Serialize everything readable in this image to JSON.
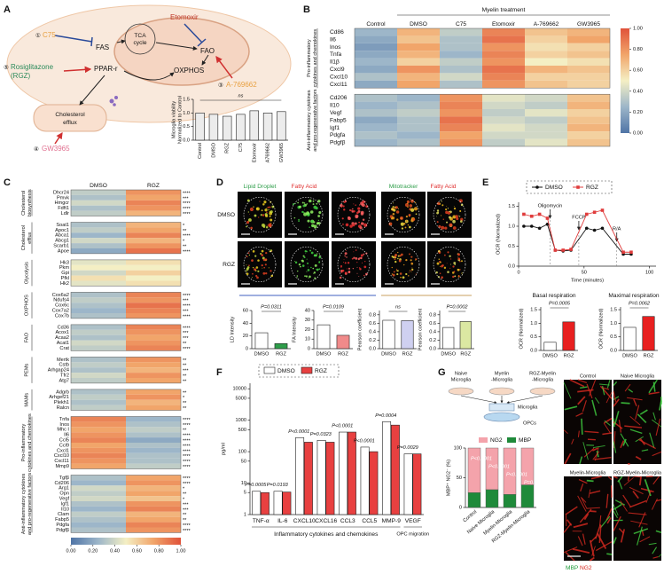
{
  "panels": [
    "A",
    "B",
    "C",
    "D",
    "E",
    "F",
    "G"
  ],
  "a": {
    "labels": {
      "n1": "①",
      "c75": "C75",
      "fas": "FAS",
      "tca1": "TCA",
      "tca2": "cycle",
      "etomoxir": "Etomoxir",
      "fao": "FAO",
      "oxphos": "OXPHOS",
      "n3": "③",
      "a769662": "A-769662",
      "n5": "⑤",
      "rgz1": "Rosiglitazone",
      "rgz2": "(RGZ)",
      "ppar": "PPAR-r",
      "efflux1": "Cholesterol",
      "efflux2": "efflux",
      "n4": "④",
      "gw": "GW3965"
    },
    "chart": {
      "type": "bar",
      "ylabel": [
        "Microglia viability",
        "Normalized to Control"
      ],
      "annotation": "ns",
      "categories": [
        "Control",
        "DMSO",
        "RGZ",
        "C75",
        "Etomoxir",
        "A769662",
        "GW3965"
      ],
      "values": [
        1.0,
        0.95,
        0.88,
        0.95,
        1.08,
        1.0,
        1.05
      ],
      "color": "#ececec",
      "ylim": [
        0,
        1.5
      ],
      "yticks": [
        {
          "value": 0,
          "label": "0.0"
        },
        0.5,
        {
          "value": 1,
          "label": "1.0"
        },
        1.5
      ]
    }
  },
  "b": {
    "type": "heatmap",
    "super_header": "Myelin treatment",
    "columns": [
      "Control",
      "DMSO",
      "C75",
      "Etomoxir",
      "A-769662",
      "GW3965"
    ],
    "blocks": [
      {
        "name": [
          "Pro-inflammatory",
          "cytokines and chemokines"
        ],
        "genes": [
          "Cd86",
          "Il6",
          "Inos",
          "Tnfa",
          "Il1β",
          "Cxcl9",
          "Cxcl10",
          "Cxcl11"
        ],
        "values": [
          [
            0.25,
            0.7,
            0.35,
            0.85,
            0.65,
            0.7
          ],
          [
            0.2,
            0.65,
            0.3,
            0.9,
            0.6,
            0.75
          ],
          [
            0.15,
            0.75,
            0.3,
            0.8,
            0.55,
            0.6
          ],
          [
            0.2,
            0.7,
            0.25,
            0.85,
            0.6,
            0.65
          ],
          [
            0.25,
            0.6,
            0.35,
            0.8,
            0.5,
            0.55
          ],
          [
            0.2,
            0.8,
            0.3,
            0.9,
            0.7,
            0.65
          ],
          [
            0.3,
            0.7,
            0.4,
            0.85,
            0.6,
            0.6
          ],
          [
            0.2,
            0.75,
            0.3,
            0.8,
            0.65,
            0.6
          ]
        ]
      },
      {
        "name": [
          "Anti-inflammatory cytokines",
          "and pro-regenerative factors"
        ],
        "genes": [
          "Cd206",
          "Il10",
          "Vegf",
          "Fabp5",
          "Igf1",
          "Pdgfa",
          "Pdgfβ"
        ],
        "values": [
          [
            0.3,
            0.25,
            0.8,
            0.45,
            0.4,
            0.65
          ],
          [
            0.25,
            0.3,
            0.85,
            0.4,
            0.35,
            0.7
          ],
          [
            0.3,
            0.35,
            0.8,
            0.35,
            0.45,
            0.6
          ],
          [
            0.2,
            0.3,
            0.9,
            0.4,
            0.35,
            0.65
          ],
          [
            0.25,
            0.3,
            0.85,
            0.45,
            0.4,
            0.7
          ],
          [
            0.3,
            0.25,
            0.75,
            0.4,
            0.4,
            0.6
          ],
          [
            0.25,
            0.3,
            0.8,
            0.35,
            0.45,
            0.65
          ]
        ]
      }
    ],
    "colorbar_ticks": [
      {
        "value": 0,
        "label": "0.00"
      },
      {
        "value": 0.2,
        "label": "0.20"
      },
      {
        "value": 0.4,
        "label": "0.40"
      },
      {
        "value": 0.6,
        "label": "0.60"
      },
      {
        "value": 0.8,
        "label": "0.80"
      },
      {
        "value": 1,
        "label": "1.00"
      }
    ]
  },
  "c": {
    "type": "heatmap",
    "columns": [
      "DMSO",
      "RGZ"
    ],
    "blocks": [
      {
        "name": [
          "Cholesterol",
          "biosynthesis"
        ],
        "genes": [
          "Dhcr24",
          "Pmvk",
          "Hmgcr",
          "Fdft1",
          "Ldlr"
        ],
        "values": [
          [
            0.35,
            0.8
          ],
          [
            0.3,
            0.75
          ],
          [
            0.4,
            0.85
          ],
          [
            0.3,
            0.8
          ],
          [
            0.35,
            0.7
          ]
        ],
        "stars": [
          "****",
          "***",
          "****",
          "****",
          "****"
        ]
      },
      {
        "name": [
          "Cholesterol",
          "efflux"
        ],
        "genes": [
          "Soat1",
          "Apoc1",
          "Abca1",
          "Abcg1",
          "Scarb1",
          "Apoe"
        ],
        "values": [
          [
            0.3,
            0.7
          ],
          [
            0.35,
            0.75
          ],
          [
            0.25,
            0.85
          ],
          [
            0.4,
            0.7
          ],
          [
            0.3,
            0.8
          ],
          [
            0.2,
            0.9
          ]
        ],
        "stars": [
          "*",
          "**",
          "****",
          "*",
          "**",
          "****"
        ]
      },
      {
        "name": [
          "Glycolysis"
        ],
        "genes": [
          "Hk3",
          "Pkm",
          "Gpi",
          "Pfkl",
          "Hk2"
        ],
        "values": [
          [
            0.45,
            0.55
          ],
          [
            0.5,
            0.5
          ],
          [
            0.4,
            0.6
          ],
          [
            0.55,
            0.5
          ],
          [
            0.45,
            0.55
          ]
        ],
        "stars": [
          null,
          null,
          null,
          null,
          null
        ]
      },
      {
        "name": [
          "OXPHOS"
        ],
        "genes": [
          "Cox6a2",
          "Ndufs4",
          "Cox6c",
          "Cox7a2",
          "Cox7b"
        ],
        "values": [
          [
            0.3,
            0.85
          ],
          [
            0.35,
            0.8
          ],
          [
            0.3,
            0.9
          ],
          [
            0.25,
            0.85
          ],
          [
            0.3,
            0.8
          ]
        ],
        "stars": [
          "****",
          "***",
          "****",
          "***",
          "****"
        ]
      },
      {
        "name": [
          "FAO"
        ],
        "genes": [
          "Cd36",
          "Acox1",
          "Acaa2",
          "Acat1",
          "Crat"
        ],
        "values": [
          [
            0.3,
            0.85
          ],
          [
            0.35,
            0.8
          ],
          [
            0.3,
            0.75
          ],
          [
            0.4,
            0.8
          ],
          [
            0.35,
            0.85
          ]
        ],
        "stars": [
          "****",
          "***",
          "***",
          "**",
          "****"
        ]
      },
      {
        "name": [
          "PEMs"
        ],
        "genes": [
          "Mertk",
          "Cstb",
          "Arhgap24",
          "Tfr2",
          "Atg7"
        ],
        "values": [
          [
            0.3,
            0.8
          ],
          [
            0.35,
            0.75
          ],
          [
            0.3,
            0.7
          ],
          [
            0.4,
            0.8
          ],
          [
            0.35,
            0.75
          ]
        ],
        "stars": [
          "**",
          "**",
          "***",
          "**",
          "**"
        ]
      },
      {
        "name": [
          "MAMs"
        ],
        "genes": [
          "Adgrb",
          "Arhgef21",
          "Plekh1",
          "Ralcn"
        ],
        "values": [
          [
            0.3,
            0.75
          ],
          [
            0.35,
            0.8
          ],
          [
            0.3,
            0.7
          ],
          [
            0.35,
            0.75
          ]
        ],
        "stars": [
          "**",
          "*",
          "**",
          "**"
        ]
      },
      {
        "name": [
          "Pro-inflammatory",
          "cytokines and chemokines"
        ],
        "genes": [
          "Tnfa",
          "Inos",
          "Mhc I",
          "Il6",
          "Ccl5",
          "Ccl9",
          "Cxcl1",
          "Cxcl10",
          "Cxcl11",
          "Mmp9"
        ],
        "values": [
          [
            0.85,
            0.25
          ],
          [
            0.8,
            0.3
          ],
          [
            0.75,
            0.35
          ],
          [
            0.8,
            0.3
          ],
          [
            0.85,
            0.2
          ],
          [
            0.75,
            0.3
          ],
          [
            0.8,
            0.25
          ],
          [
            0.85,
            0.3
          ],
          [
            0.8,
            0.3
          ],
          [
            0.75,
            0.35
          ]
        ],
        "stars": [
          "****",
          "****",
          "**",
          "****",
          "****",
          "****",
          "****",
          "****",
          "****",
          "****"
        ]
      },
      {
        "name": [
          "Anti-inflammatory cytokines",
          "and pro-regenerative factors"
        ],
        "genes": [
          "Tgfβ",
          "Cd206",
          "Arg1",
          "Opn",
          "Vegf",
          "Igf1",
          "Il10",
          "Clam",
          "Fabp5",
          "Pdgfa",
          "Pdgfβ"
        ],
        "values": [
          [
            0.3,
            0.75
          ],
          [
            0.25,
            0.8
          ],
          [
            0.4,
            0.7
          ],
          [
            0.35,
            0.75
          ],
          [
            0.4,
            0.65
          ],
          [
            0.3,
            0.8
          ],
          [
            0.25,
            0.85
          ],
          [
            0.35,
            0.7
          ],
          [
            0.3,
            0.75
          ],
          [
            0.25,
            0.85
          ],
          [
            0.3,
            0.8
          ]
        ],
        "stars": [
          "****",
          "****",
          "*",
          "**",
          "*",
          "***",
          "***",
          "**",
          "**",
          "****",
          "****"
        ]
      }
    ],
    "colorbar_ticks": [
      {
        "value": 0,
        "label": "0.00"
      },
      {
        "value": 0.2,
        "label": "0.20"
      },
      {
        "value": 0.4,
        "label": "0.40"
      },
      {
        "value": 0.6,
        "label": "0.60"
      },
      {
        "value": 0.8,
        "label": "0.80"
      },
      {
        "value": 1,
        "label": "1.00"
      }
    ]
  },
  "d": {
    "images": {
      "headers": [
        "Lipid Droplet",
        "Fatty Acid",
        "Mitotracker",
        "Fatty Acid"
      ],
      "rows": [
        "DMSO",
        "RGZ"
      ]
    },
    "charts": [
      {
        "type": "bar",
        "ylabel": "LD Intensity",
        "annotation": "P=0.0311",
        "categories": [
          "DMSO",
          "RGZ"
        ],
        "values": [
          25,
          8
        ],
        "colors": [
          "#ffffff",
          "#2e9e4a"
        ],
        "ylim": [
          0,
          60
        ],
        "yticks": [
          0,
          20,
          40,
          60
        ]
      },
      {
        "type": "bar",
        "ylabel": "FA Intensity",
        "annotation": "P=0.0109",
        "categories": [
          "DMSO",
          "RGZ"
        ],
        "values": [
          25,
          14
        ],
        "colors": [
          "#ffffff",
          "#f08a8a"
        ],
        "ylim": [
          0,
          40
        ],
        "yticks": [
          0,
          10,
          20,
          30,
          40
        ]
      },
      {
        "type": "bar",
        "ylabel": "Pearson coefficient",
        "annotation": "ns",
        "categories": [
          "DMSO",
          "RGZ"
        ],
        "values": [
          0.67,
          0.66
        ],
        "colors": [
          "#ffffff",
          "#cfd0f0"
        ],
        "ylim": [
          0,
          0.9
        ],
        "yticks": [
          {
            "value": 0,
            "label": "0.0"
          },
          0.2,
          0.4,
          0.6,
          0.8
        ]
      },
      {
        "type": "bar",
        "ylabel": "Pearson coefficient",
        "annotation": "P=0.0002",
        "categories": [
          "DMSO",
          "RGZ"
        ],
        "values": [
          0.5,
          0.64
        ],
        "colors": [
          "#ffffff",
          "#dbe8a2"
        ],
        "ylim": [
          0,
          0.9
        ],
        "yticks": [
          {
            "value": 0,
            "label": "0.0"
          },
          0.2,
          0.4,
          0.6,
          0.8
        ]
      }
    ]
  },
  "e": {
    "line": {
      "type": "line",
      "ylabel": "OCR (Normalized)",
      "xlabel": "Time (minutes)",
      "x": [
        4,
        10,
        16,
        22,
        28,
        34,
        40,
        52,
        58,
        64,
        80,
        86
      ],
      "series": [
        {
          "name": "DMSO",
          "color": "#111111",
          "values": [
            1.0,
            1.0,
            0.95,
            1.05,
            0.4,
            0.38,
            0.4,
            0.95,
            0.9,
            0.95,
            0.3,
            0.3
          ]
        },
        {
          "name": "RGZ",
          "color": "#e03c3c",
          "values": [
            1.3,
            1.25,
            1.3,
            1.2,
            0.4,
            0.4,
            0.42,
            1.3,
            1.35,
            1.4,
            0.35,
            0.35
          ]
        }
      ],
      "xlim": [
        0,
        105
      ],
      "xticks": [
        0,
        50,
        100
      ],
      "ylim": [
        0,
        1.6
      ],
      "yticks": [
        {
          "value": 0,
          "label": "0.0"
        },
        0.5,
        {
          "value": 1,
          "label": "1.0"
        },
        1.5
      ],
      "annotations": [
        {
          "text": "Oligomycin",
          "x": 24
        },
        {
          "text": "FCCP",
          "x": 46
        },
        {
          "text": "R/A",
          "x": 75
        }
      ]
    },
    "charts": [
      {
        "type": "bar",
        "title": "Basal respiration",
        "ylabel": "OCR (Normalized)",
        "annotation": "P=0.0005",
        "categories": [
          "DMSO",
          "RGZ"
        ],
        "values": [
          0.3,
          1.05
        ],
        "colors": [
          "#ffffff",
          "#e82020"
        ],
        "ylim": [
          0,
          1.6
        ],
        "yticks": [
          {
            "value": 0,
            "label": "0.0"
          },
          0.5,
          {
            "value": 1,
            "label": "1.0"
          },
          1.5
        ]
      },
      {
        "type": "bar",
        "title": "Maximal respiration",
        "ylabel": "OCR (Normalized)",
        "annotation": "P=0.0062",
        "categories": [
          "DMSO",
          "RGZ"
        ],
        "values": [
          0.85,
          1.25
        ],
        "colors": [
          "#ffffff",
          "#e82020"
        ],
        "ylim": [
          0,
          1.6
        ],
        "yticks": [
          {
            "value": 0,
            "label": "0.0"
          },
          0.5,
          {
            "value": 1,
            "label": "1.0"
          },
          1.5
        ]
      }
    ]
  },
  "f": {
    "type": "grouped_bar",
    "log": true,
    "ylabel": "pg/ml",
    "categories": [
      "TNF-α",
      "IL-6",
      "CXCL10",
      "CXCL16",
      "CCL3",
      "CCL5",
      "MMP-9",
      "VEGF"
    ],
    "series": [
      {
        "name": "DMSO",
        "color": "#ffffff",
        "values": [
          5.5,
          5.5,
          280,
          230,
          420,
          140,
          900,
          85
        ]
      },
      {
        "name": "RGZ",
        "color": "#e84040",
        "values": [
          5,
          5.2,
          200,
          200,
          420,
          100,
          700,
          85
        ]
      }
    ],
    "ylim": [
      1,
      15000
    ],
    "yticks": [
      1,
      5,
      10,
      50,
      100,
      500,
      1000,
      5000,
      10000
    ],
    "annotations": [
      "P=0.0005",
      "P=0.0193",
      "P<0.0001",
      "P=0.0323",
      "P<0.0001",
      "P<0.0001",
      "P=0.0004",
      "P=0.0029"
    ],
    "group_labels": [
      "Inflammatory cytokines and chemokines",
      "OPC migration"
    ]
  },
  "g": {
    "diagram": {
      "dishes": [
        [
          "Naive",
          "Microglia"
        ],
        [
          "Myelin",
          "-Microglia"
        ],
        [
          "RGZ-Myelin",
          "-Microglia"
        ]
      ],
      "insert": "Microglia",
      "well": "OPCs"
    },
    "chart": {
      "type": "stacked_bar",
      "ylabel": "MBP⁺ NG2⁻ (%)",
      "categories": [
        "Control",
        "Naive Microglia",
        "Myelin-Microglia",
        "RGZ-Myelin-Microglia"
      ],
      "series": [
        {
          "name": "NG2",
          "color": "#f4a3ab",
          "values": [
            75,
            70,
            78,
            62
          ]
        },
        {
          "name": "MBP",
          "color": "#1f8a3a",
          "values": [
            25,
            30,
            22,
            38
          ]
        }
      ],
      "ylim": [
        0,
        100
      ],
      "yticks": [
        0,
        50,
        100
      ],
      "annotations": [
        "P<0.0001",
        "P<0.0001",
        "P<0.0001",
        "P=0.0013"
      ]
    },
    "images": {
      "titles": [
        "Control",
        "Naive Microglia",
        "Myelin-Microglia",
        "RGZ-Myelin-Microglia"
      ],
      "legend": [
        "MBP",
        "NG2"
      ]
    }
  }
}
